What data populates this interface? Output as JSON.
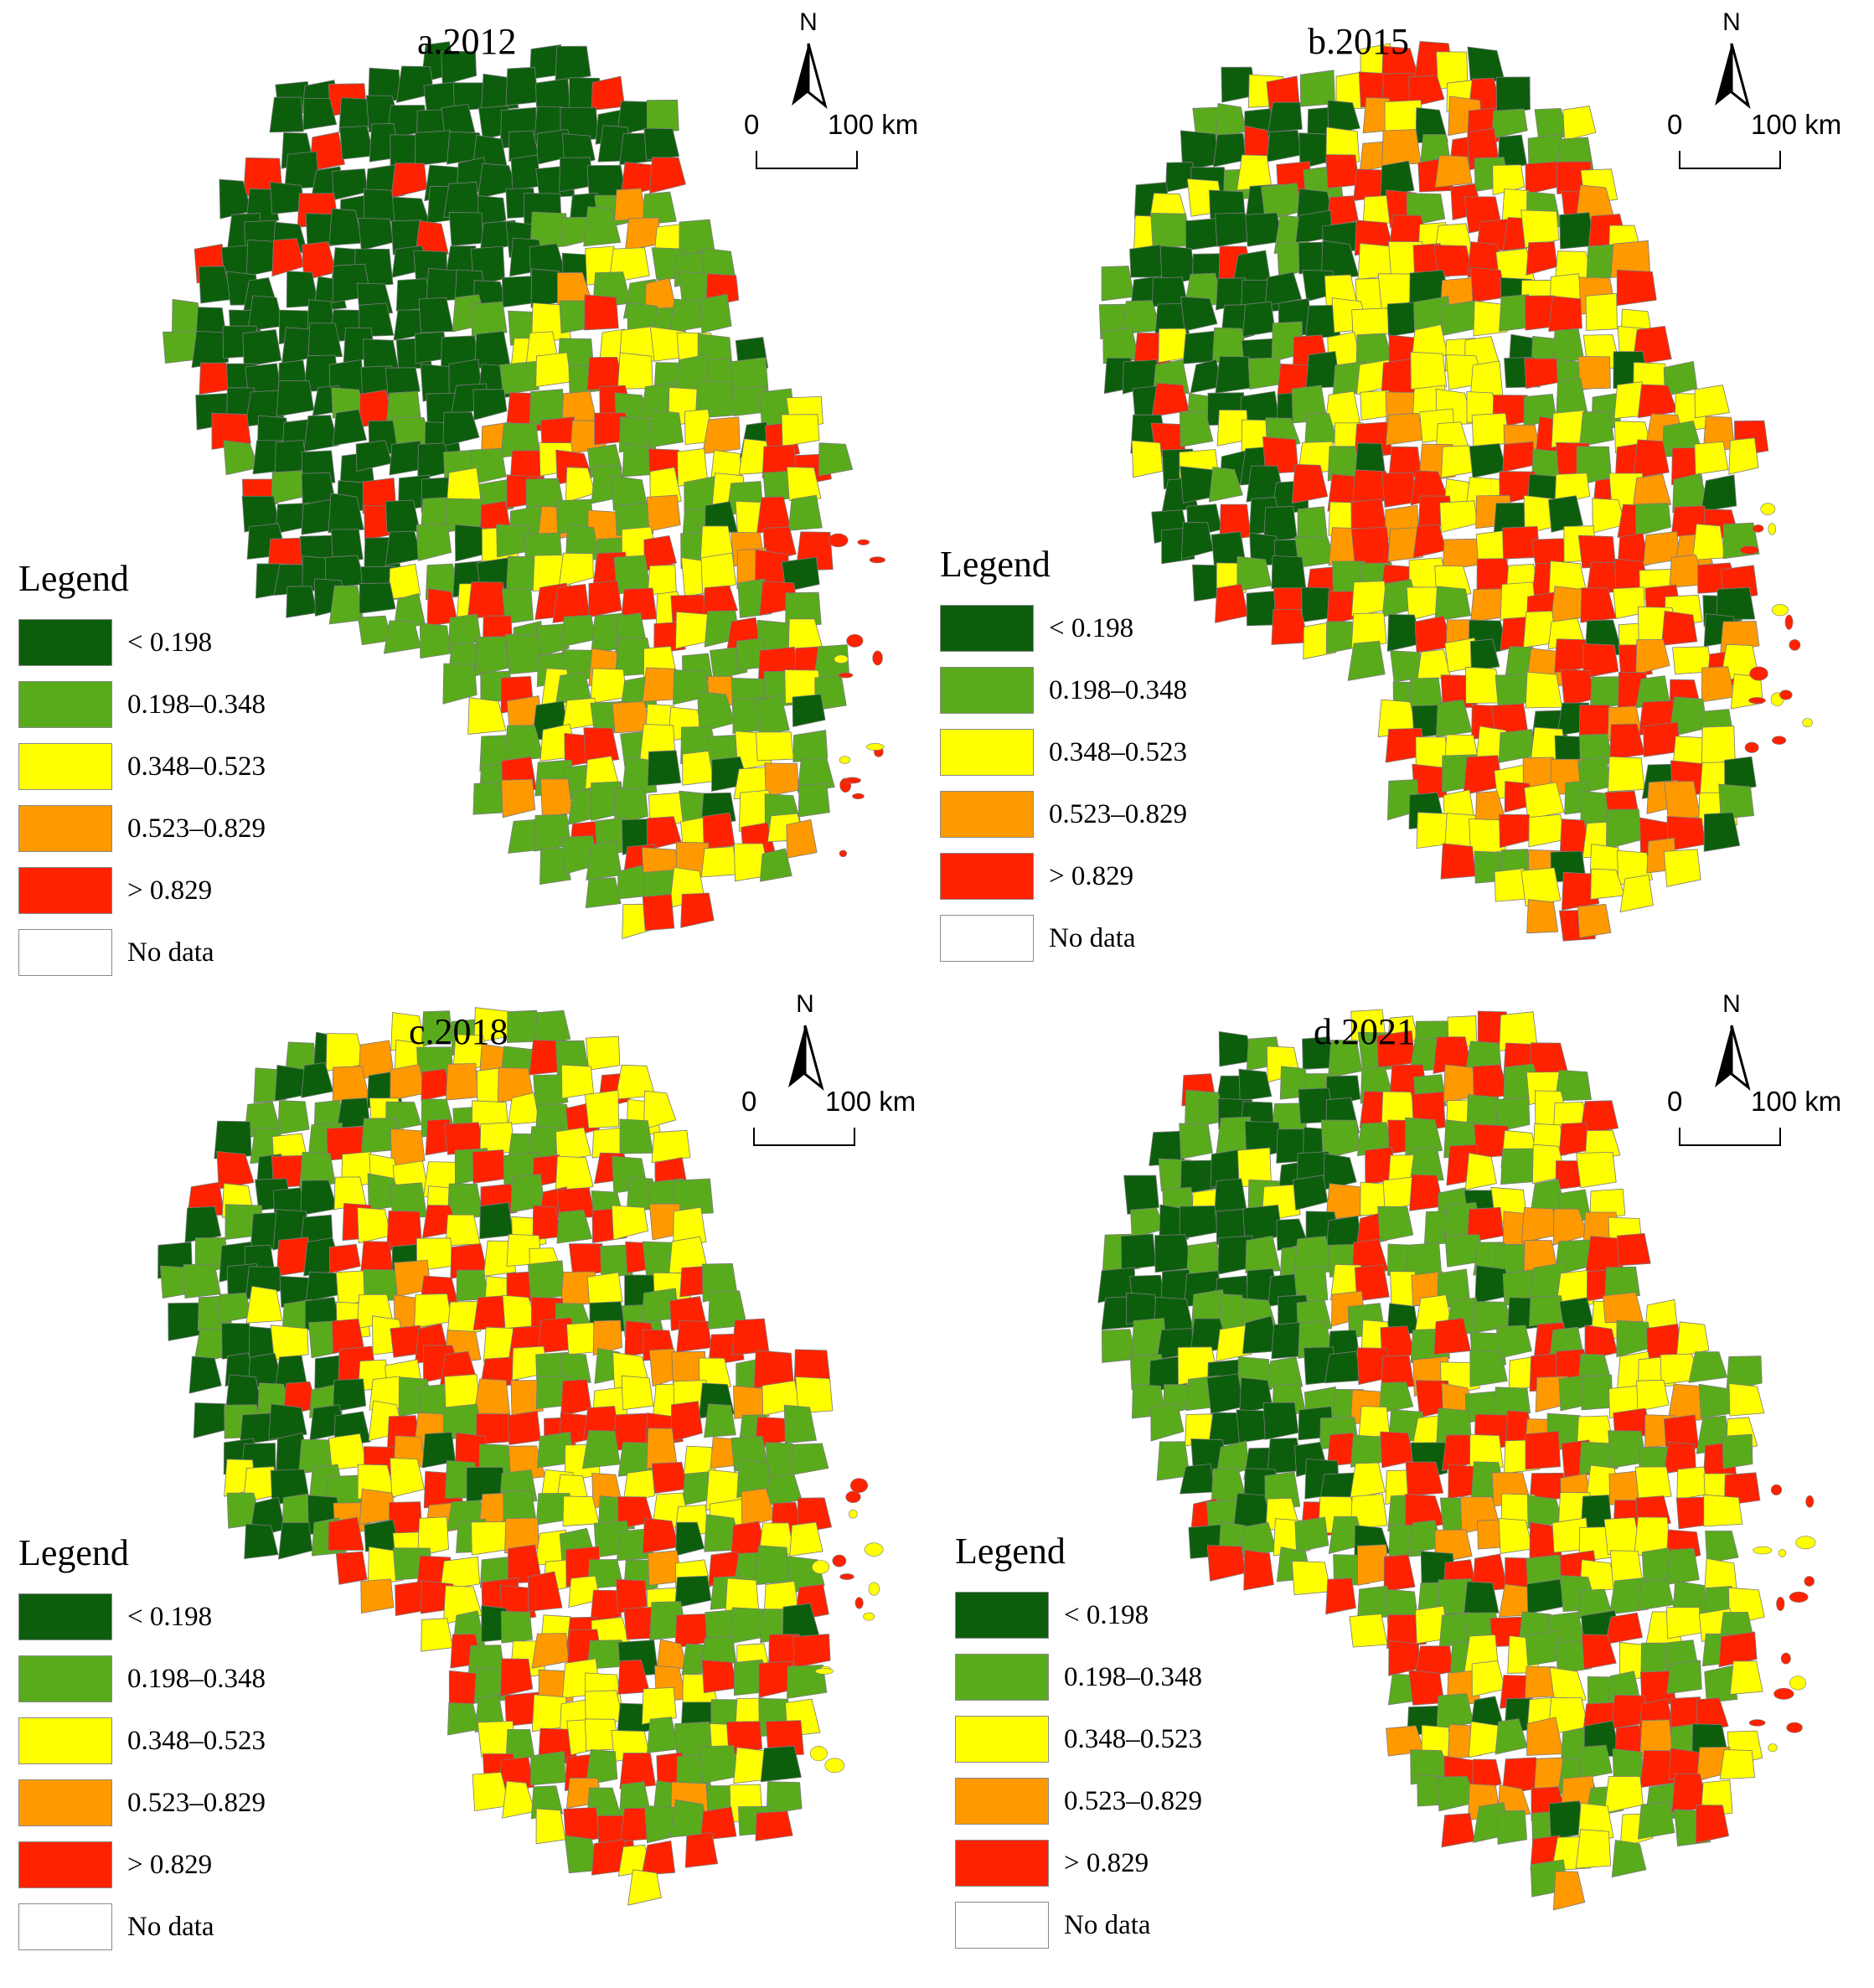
{
  "legend": {
    "title": "Legend",
    "classes": [
      {
        "label": "< 0.198",
        "color": "#0c5e0d"
      },
      {
        "label": "0.198–0.348",
        "color": "#5aab1c"
      },
      {
        "label": "0.348–0.523",
        "color": "#ffff00"
      },
      {
        "label": "0.523–0.829",
        "color": "#ff9900"
      },
      {
        "label": "> 0.829",
        "color": "#ff2200"
      },
      {
        "label": "No data",
        "color": "#ffffff"
      }
    ]
  },
  "north_arrow": {
    "label": "N"
  },
  "scale_bar": {
    "start": "0",
    "end": "100 km"
  },
  "panels": [
    {
      "title": "a.2012",
      "dominant_class": 0
    },
    {
      "title": "b.2015",
      "dominant_class": 2
    },
    {
      "title": "c.2018",
      "dominant_class": 2
    },
    {
      "title": "d.2021",
      "dominant_class": 1
    }
  ]
}
